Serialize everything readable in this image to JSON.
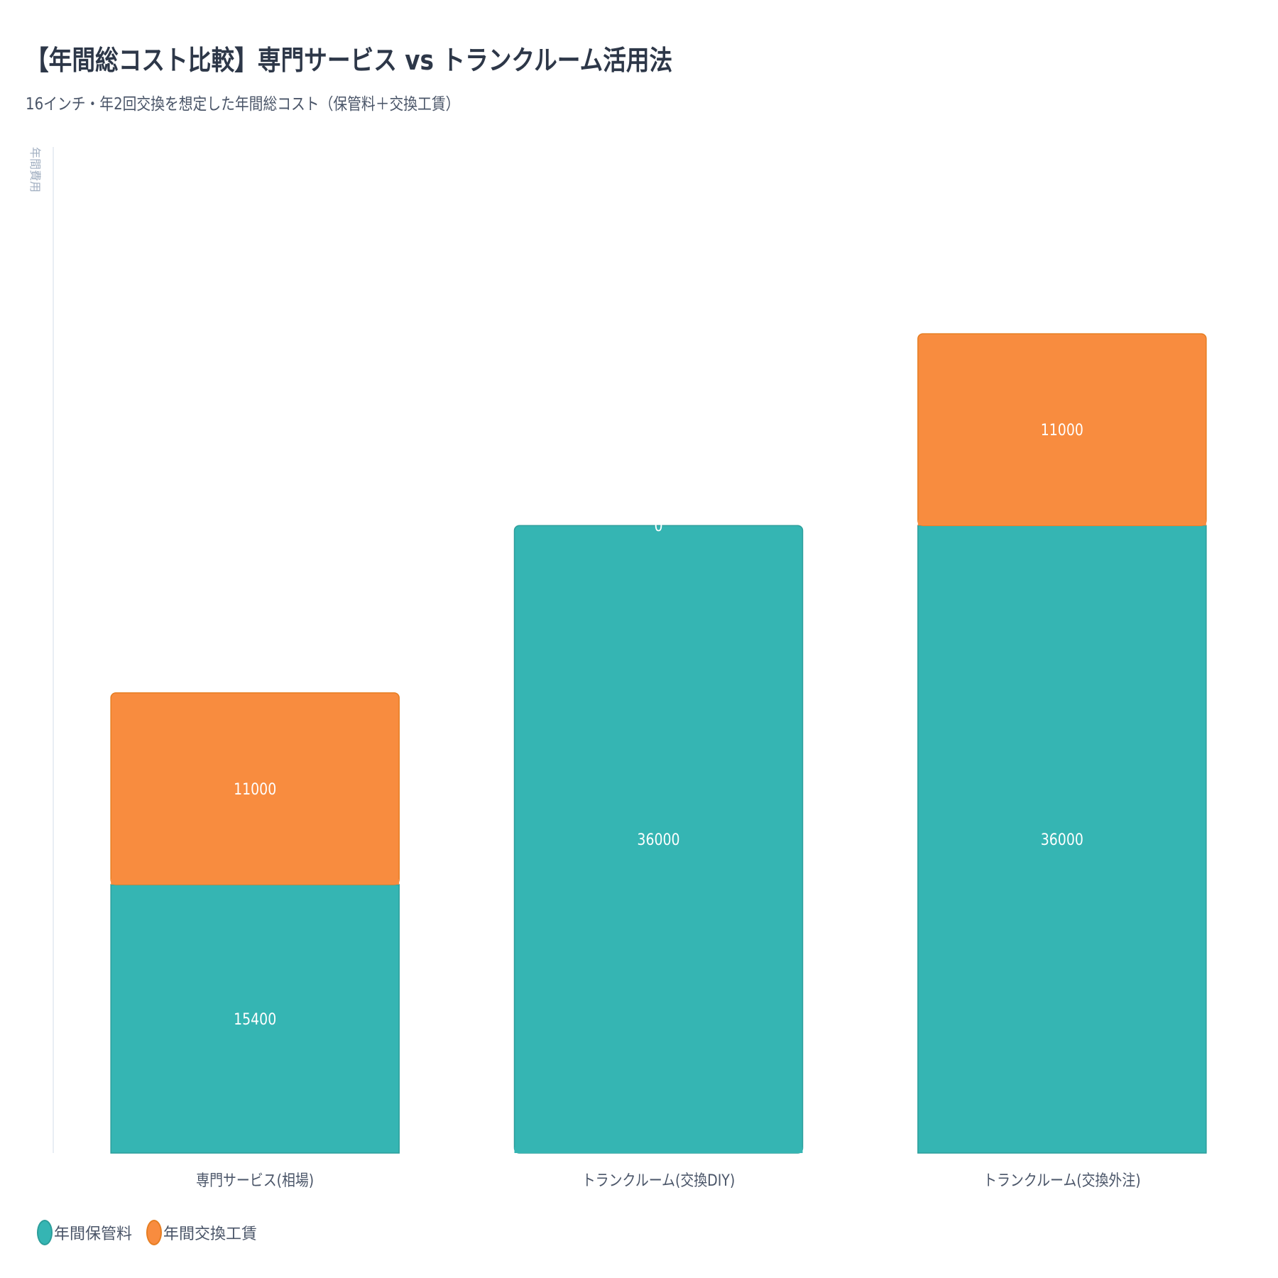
{
  "chart_data": {
    "type": "bar",
    "stacked": true,
    "title": "【年間総コスト比較】専門サービス vs トランクルーム活用法",
    "subtitle": "16インチ・年2回交換を想定した年間総コスト（保管料＋交換工賃）",
    "ylabel": "年間費用",
    "xlabel": "",
    "categories": [
      "専門サービス(相場)",
      "トランクルーム(交換DIY)",
      "トランクルーム(交換外注)"
    ],
    "series": [
      {
        "name": "年間保管料",
        "values": [
          15400,
          36000,
          36000
        ],
        "color": "#35b5b3",
        "border": "#2c9e9b"
      },
      {
        "name": "年間交換工賃",
        "values": [
          11000,
          0,
          11000
        ],
        "color": "#f88c3f",
        "border": "#e67e22"
      }
    ],
    "ylim": [
      0,
      50000
    ],
    "grid": false,
    "legend_position": "bottom-left"
  }
}
